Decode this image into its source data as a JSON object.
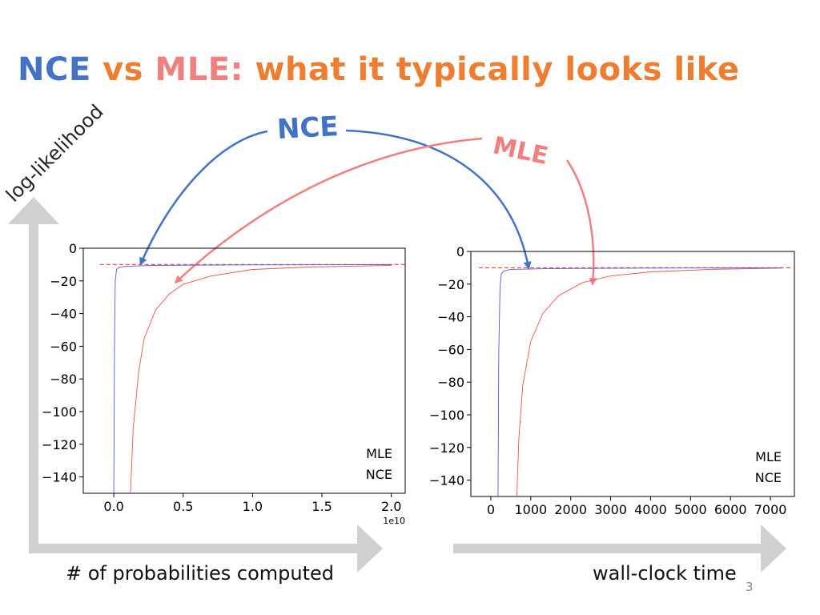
{
  "slide": {
    "title_nce": "NCE",
    "title_vs": "vs",
    "title_mle": "MLE:",
    "title_rest": "what it typically looks like",
    "y_axis_label": "log-likelihood",
    "x_label_left": "# of probabilities computed",
    "x_label_right": "wall-clock time",
    "callout_nce": "NCE",
    "callout_mle": "MLE",
    "page_number": "3"
  },
  "colors": {
    "nce": "#4472C4",
    "mle": "#F08080",
    "title_orange": "#ED7D31",
    "axis_arrow": "#D0D0D0",
    "nce_series": "#4F5BD5",
    "mle_series": "#E8524A"
  },
  "chart_data": [
    {
      "type": "line",
      "title": "",
      "xlabel": "",
      "ylabel": "",
      "xlim": [
        -0.22,
        2.1
      ],
      "ylim": [
        -150,
        0
      ],
      "x_ticks": [
        0.0,
        0.5,
        1.0,
        1.5,
        2.0
      ],
      "x_tick_labels": [
        "0.0",
        "0.5",
        "1.0",
        "1.5",
        "2.0"
      ],
      "x_multiplier": "1e10",
      "y_ticks": [
        0,
        -20,
        -40,
        -60,
        -80,
        -100,
        -120,
        -140
      ],
      "y_tick_labels": [
        "0",
        "−20",
        "−40",
        "−60",
        "−80",
        "−100",
        "−120",
        "−140"
      ],
      "reference_line": {
        "y": -10,
        "xrange": [
          -0.1,
          2.1
        ],
        "style": "dashed"
      },
      "legend": {
        "entries": [
          "MLE",
          "NCE"
        ],
        "placement": "lower-right"
      },
      "series": [
        {
          "name": "MLE",
          "x": [
            0.12,
            0.14,
            0.18,
            0.22,
            0.3,
            0.4,
            0.5,
            0.7,
            1.0,
            1.4,
            2.0
          ],
          "y": [
            -150,
            -110,
            -75,
            -55,
            -38,
            -28,
            -22,
            -17,
            -13,
            -11.5,
            -10.5
          ]
        },
        {
          "name": "NCE",
          "x": [
            0.0,
            0.005,
            0.01,
            0.02,
            0.04,
            0.1,
            0.3,
            1.0,
            2.0
          ],
          "y": [
            -150,
            -60,
            -20,
            -13,
            -11.5,
            -11,
            -10.5,
            -10.2,
            -10
          ]
        }
      ],
      "grid": false
    },
    {
      "type": "line",
      "title": "",
      "xlabel": "",
      "ylabel": "",
      "xlim": [
        -500,
        7600
      ],
      "ylim": [
        -150,
        0
      ],
      "x_ticks": [
        0,
        1000,
        2000,
        3000,
        4000,
        5000,
        6000,
        7000
      ],
      "x_tick_labels": [
        "0",
        "1000",
        "2000",
        "3000",
        "4000",
        "5000",
        "6000",
        "7000"
      ],
      "y_ticks": [
        0,
        -20,
        -40,
        -60,
        -80,
        -100,
        -120,
        -140
      ],
      "y_tick_labels": [
        "0",
        "−20",
        "−40",
        "−60",
        "−80",
        "−100",
        "−120",
        "−140"
      ],
      "reference_line": {
        "y": -10,
        "xrange": [
          -300,
          7500
        ],
        "style": "dashed"
      },
      "legend": {
        "entries": [
          "MLE",
          "NCE"
        ],
        "placement": "lower-right"
      },
      "series": [
        {
          "name": "MLE",
          "x": [
            650,
            700,
            800,
            1000,
            1300,
            1700,
            2300,
            3000,
            4000,
            5500,
            7300
          ],
          "y": [
            -150,
            -115,
            -82,
            -55,
            -38,
            -27,
            -19,
            -15,
            -12.5,
            -11,
            -10.2
          ]
        },
        {
          "name": "NCE",
          "x": [
            180,
            200,
            230,
            260,
            320,
            500,
            1500,
            4000,
            7300
          ],
          "y": [
            -150,
            -60,
            -22,
            -14,
            -12,
            -11,
            -10.5,
            -10.2,
            -10
          ]
        }
      ],
      "grid": false
    }
  ]
}
